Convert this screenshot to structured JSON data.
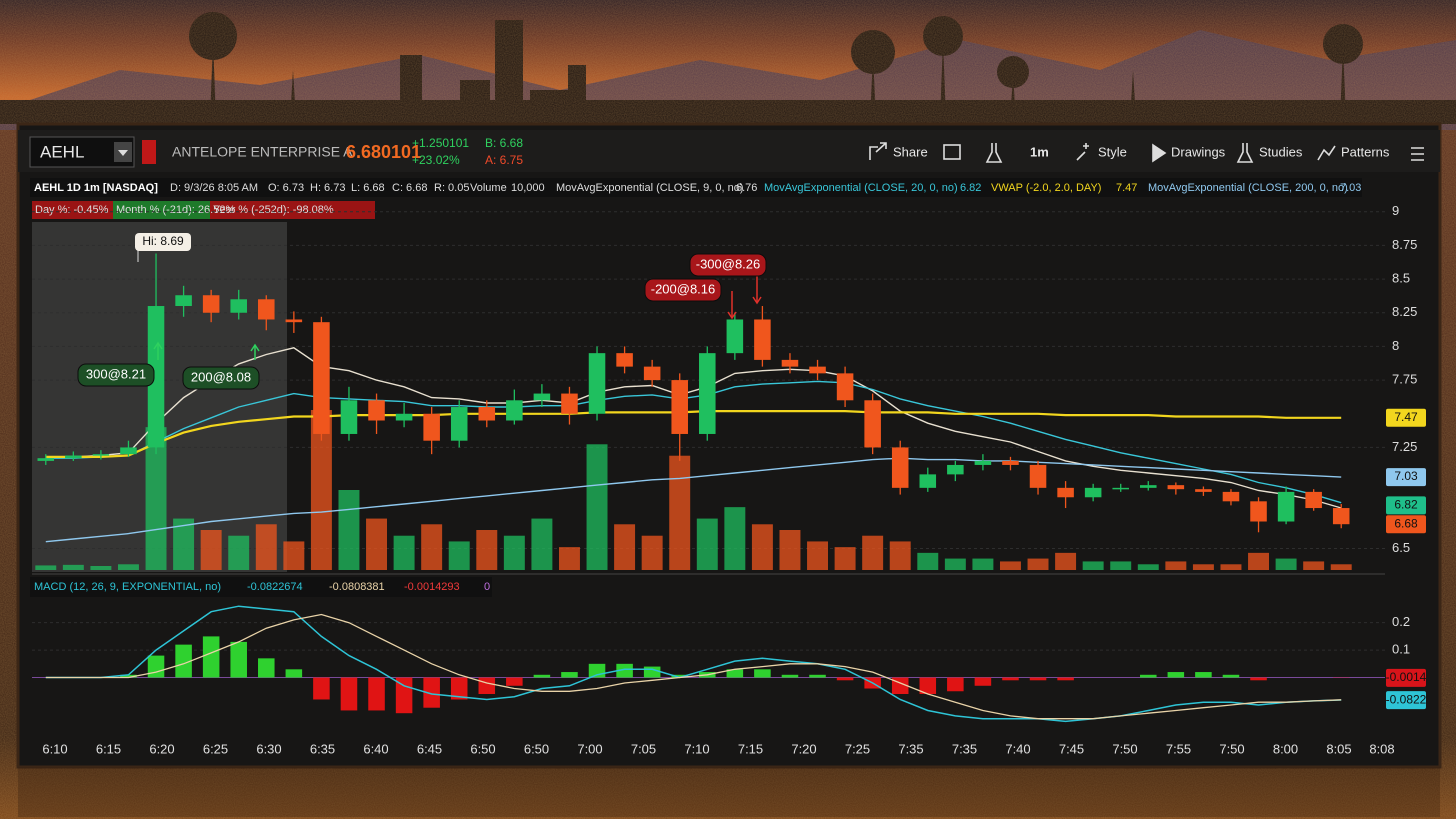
{
  "toolbar": {
    "symbol": "AEHL",
    "company": "ANTELOPE ENTERPRISE A",
    "price": "6.680101",
    "change": "+1.250101",
    "change_pct": "+23.02%",
    "bid": "B: 6.68",
    "ask": "A: 6.75",
    "buttons": [
      "Share",
      "1m",
      "Style",
      "Drawings",
      "Studies",
      "Patterns"
    ]
  },
  "info": {
    "title": "AEHL 1D 1m [NASDAQ]",
    "date": "D: 9/3/26 8:05 AM",
    "open": "O: 6.73",
    "high": "H: 6.73",
    "low": "L: 6.68",
    "close": "C: 6.68",
    "range": "R: 0.05",
    "volume_label": "Volume",
    "volume": "10,000",
    "studies": [
      {
        "name": "MovAvgExponential (CLOSE, 9, 0, no)",
        "value": "6.76"
      },
      {
        "name": "MovAvgExponential (CLOSE, 20, 0, no)",
        "value": "6.82"
      },
      {
        "name": "VWAP (-2.0, 2.0, DAY)",
        "value": "7.47"
      },
      {
        "name": "MovAvgExponential (CLOSE, 200, 0, no)",
        "value": "7.03"
      }
    ]
  },
  "stats": [
    "Day %: -0.45%",
    "Month % (-21d): 26.52%",
    "Year % (-252d): -98.08%"
  ],
  "chart_data": {
    "type": "candlestick",
    "up_color": "#1fbf5f",
    "down_color": "#f0561d",
    "candles": [
      [
        7.15,
        7.2,
        7.12,
        7.17
      ],
      [
        7.17,
        7.22,
        7.15,
        7.19
      ],
      [
        7.19,
        7.23,
        7.16,
        7.2
      ],
      [
        7.2,
        7.3,
        7.18,
        7.25
      ],
      [
        7.25,
        8.69,
        7.2,
        8.3
      ],
      [
        8.3,
        8.45,
        8.22,
        8.38
      ],
      [
        8.38,
        8.42,
        8.18,
        8.25
      ],
      [
        8.25,
        8.42,
        8.2,
        8.35
      ],
      [
        8.35,
        8.38,
        8.12,
        8.2
      ],
      [
        8.2,
        8.26,
        8.1,
        8.18
      ],
      [
        8.18,
        8.22,
        7.3,
        7.35
      ],
      [
        7.35,
        7.7,
        7.3,
        7.6
      ],
      [
        7.6,
        7.65,
        7.35,
        7.45
      ],
      [
        7.45,
        7.58,
        7.4,
        7.5
      ],
      [
        7.5,
        7.55,
        7.2,
        7.3
      ],
      [
        7.3,
        7.6,
        7.25,
        7.55
      ],
      [
        7.55,
        7.6,
        7.4,
        7.45
      ],
      [
        7.45,
        7.68,
        7.42,
        7.6
      ],
      [
        7.6,
        7.72,
        7.55,
        7.65
      ],
      [
        7.65,
        7.7,
        7.42,
        7.5
      ],
      [
        7.5,
        8.0,
        7.45,
        7.95
      ],
      [
        7.95,
        8.0,
        7.8,
        7.85
      ],
      [
        7.85,
        7.9,
        7.7,
        7.75
      ],
      [
        7.75,
        7.8,
        7.15,
        7.35
      ],
      [
        7.35,
        8.0,
        7.3,
        7.95
      ],
      [
        7.95,
        8.25,
        7.9,
        8.2
      ],
      [
        8.2,
        8.3,
        7.85,
        7.9
      ],
      [
        7.9,
        7.95,
        7.8,
        7.85
      ],
      [
        7.85,
        7.9,
        7.75,
        7.8
      ],
      [
        7.8,
        7.85,
        7.55,
        7.6
      ],
      [
        7.6,
        7.65,
        7.2,
        7.25
      ],
      [
        7.25,
        7.3,
        6.9,
        6.95
      ],
      [
        6.95,
        7.1,
        6.92,
        7.05
      ],
      [
        7.05,
        7.15,
        7.0,
        7.12
      ],
      [
        7.12,
        7.2,
        7.08,
        7.15
      ],
      [
        7.15,
        7.18,
        7.08,
        7.12
      ],
      [
        7.12,
        7.15,
        6.9,
        6.95
      ],
      [
        6.95,
        7.0,
        6.8,
        6.88
      ],
      [
        6.88,
        6.98,
        6.85,
        6.95
      ],
      [
        6.95,
        6.98,
        6.92,
        6.95
      ],
      [
        6.95,
        7.0,
        6.93,
        6.97
      ],
      [
        6.97,
        6.99,
        6.9,
        6.94
      ],
      [
        6.94,
        6.96,
        6.89,
        6.92
      ],
      [
        6.92,
        6.94,
        6.82,
        6.85
      ],
      [
        6.85,
        6.88,
        6.62,
        6.7
      ],
      [
        6.7,
        6.96,
        6.68,
        6.92
      ],
      [
        6.92,
        6.94,
        6.78,
        6.8
      ],
      [
        6.8,
        6.83,
        6.65,
        6.68
      ]
    ],
    "volume": [
      800,
      900,
      700,
      1000,
      25000,
      9000,
      7000,
      6000,
      8000,
      5000,
      28000,
      14000,
      9000,
      6000,
      8000,
      5000,
      7000,
      6000,
      9000,
      4000,
      22000,
      8000,
      6000,
      20000,
      9000,
      11000,
      8000,
      7000,
      5000,
      4000,
      6000,
      5000,
      3000,
      2000,
      2000,
      1500,
      2000,
      3000,
      1500,
      1500,
      1000,
      1500,
      1000,
      1000,
      3000,
      2000,
      1500,
      1000
    ],
    "overlays": [
      {
        "color": "#e8e0d0",
        "values": [
          7.17,
          7.18,
          7.19,
          7.21,
          7.43,
          7.62,
          7.75,
          7.87,
          7.94,
          7.99,
          7.85,
          7.82,
          7.75,
          7.7,
          7.62,
          7.61,
          7.58,
          7.58,
          7.6,
          7.58,
          7.66,
          7.7,
          7.71,
          7.64,
          7.7,
          7.8,
          7.82,
          7.83,
          7.82,
          7.78,
          7.67,
          7.52,
          7.43,
          7.37,
          7.33,
          7.29,
          7.22,
          7.15,
          7.11,
          7.08,
          7.06,
          7.04,
          7.02,
          6.99,
          6.93,
          6.9,
          6.86,
          6.8
        ]
      },
      {
        "color": "#39c6d8",
        "values": [
          7.17,
          7.17,
          7.18,
          7.19,
          7.29,
          7.39,
          7.47,
          7.55,
          7.6,
          7.65,
          7.62,
          7.61,
          7.6,
          7.59,
          7.56,
          7.56,
          7.55,
          7.55,
          7.56,
          7.56,
          7.6,
          7.63,
          7.64,
          7.61,
          7.64,
          7.7,
          7.72,
          7.73,
          7.74,
          7.73,
          7.68,
          7.61,
          7.56,
          7.52,
          7.48,
          7.43,
          7.37,
          7.31,
          7.26,
          7.21,
          7.17,
          7.13,
          7.09,
          7.05,
          6.99,
          6.95,
          6.9,
          6.84
        ]
      },
      {
        "color": "#f2d61e",
        "values": [
          7.18,
          7.18,
          7.18,
          7.19,
          7.28,
          7.36,
          7.41,
          7.44,
          7.46,
          7.48,
          7.48,
          7.49,
          7.49,
          7.49,
          7.49,
          7.5,
          7.5,
          7.5,
          7.5,
          7.5,
          7.51,
          7.51,
          7.51,
          7.51,
          7.52,
          7.52,
          7.52,
          7.52,
          7.52,
          7.52,
          7.51,
          7.51,
          7.51,
          7.5,
          7.5,
          7.5,
          7.5,
          7.49,
          7.49,
          7.49,
          7.49,
          7.48,
          7.48,
          7.48,
          7.48,
          7.47,
          7.47,
          7.47
        ]
      },
      {
        "color": "#8fc8ee",
        "values": [
          6.55,
          6.57,
          6.59,
          6.61,
          6.64,
          6.67,
          6.7,
          6.72,
          6.74,
          6.76,
          6.77,
          6.79,
          6.81,
          6.83,
          6.85,
          6.87,
          6.89,
          6.91,
          6.93,
          6.95,
          6.97,
          6.99,
          7.01,
          7.02,
          7.04,
          7.06,
          7.08,
          7.1,
          7.12,
          7.14,
          7.16,
          7.17,
          7.16,
          7.16,
          7.15,
          7.15,
          7.14,
          7.13,
          7.12,
          7.11,
          7.1,
          7.09,
          7.08,
          7.07,
          7.06,
          7.05,
          7.04,
          7.03
        ]
      }
    ],
    "ylim": [
      6.34,
      9.05
    ],
    "yticks": [
      9,
      8.75,
      8.5,
      8.25,
      8,
      7.75,
      7.25,
      6.5
    ],
    "grid": true,
    "markers": [
      {
        "value": 7.47,
        "color": "#f2d61e"
      },
      {
        "value": 7.03,
        "color": "#8fc8ee"
      },
      {
        "value": 6.82,
        "color": "#1fbf8a"
      },
      {
        "value": 6.68,
        "color": "#f0561d"
      }
    ],
    "annotations": {
      "high": "Hi: 8.69",
      "trades": [
        {
          "text": "300@8.21",
          "color": "#1d4f26"
        },
        {
          "text": "200@8.08",
          "color": "#1d4f26"
        },
        {
          "text": "-200@8.16",
          "color": "#a8161a"
        },
        {
          "text": "-300@8.26",
          "color": "#a8161a"
        }
      ]
    },
    "time_labels": [
      "6:10",
      "6:15",
      "6:20",
      "6:25",
      "6:30",
      "6:35",
      "6:40",
      "6:45",
      "6:50",
      "6:50",
      "7:00",
      "7:05",
      "7:10",
      "7:15",
      "7:20",
      "7:25",
      "7:35",
      "7:35",
      "7:40",
      "7:45",
      "7:50",
      "7:55",
      "7:50",
      "8:00",
      "8:05",
      "8:08"
    ],
    "macd": {
      "title": "MACD (12, 26, 9, EXPONENTIAL, no)",
      "macd_label": "-0.0822674",
      "signal_label": "-0.0808381",
      "hist_label": "-0.0014293",
      "extra_label": "0",
      "macd_color": "#2ec4d6",
      "signal_color": "#e9d3a8",
      "pos_color": "#2fd12f",
      "neg_color": "#e01414",
      "ylim": [
        -0.235,
        0.29
      ],
      "yticks": [
        0.2,
        0.1
      ],
      "macd": [
        0,
        0,
        0,
        0.01,
        0.1,
        0.17,
        0.24,
        0.26,
        0.25,
        0.24,
        0.15,
        0.08,
        0.03,
        -0.03,
        -0.06,
        -0.07,
        -0.08,
        -0.07,
        -0.04,
        -0.03,
        0.01,
        0.03,
        0.03,
        0.0,
        0.03,
        0.06,
        0.07,
        0.06,
        0.05,
        0.03,
        -0.02,
        -0.08,
        -0.12,
        -0.14,
        -0.15,
        -0.15,
        -0.15,
        -0.16,
        -0.15,
        -0.14,
        -0.12,
        -0.1,
        -0.09,
        -0.09,
        -0.1,
        -0.09,
        -0.085,
        -0.082
      ],
      "signal": [
        0,
        0,
        0,
        0,
        0.02,
        0.05,
        0.09,
        0.13,
        0.18,
        0.21,
        0.23,
        0.2,
        0.15,
        0.1,
        0.05,
        0.01,
        -0.02,
        -0.04,
        -0.05,
        -0.05,
        -0.04,
        -0.02,
        -0.01,
        0.0,
        0.01,
        0.03,
        0.04,
        0.05,
        0.05,
        0.04,
        0.02,
        -0.02,
        -0.06,
        -0.09,
        -0.12,
        -0.14,
        -0.15,
        -0.15,
        -0.15,
        -0.14,
        -0.13,
        -0.12,
        -0.11,
        -0.1,
        -0.09,
        -0.09,
        -0.085,
        -0.081
      ],
      "histogram": [
        0,
        0,
        0,
        0.01,
        0.08,
        0.12,
        0.15,
        0.13,
        0.07,
        0.03,
        -0.08,
        -0.12,
        -0.12,
        -0.13,
        -0.11,
        -0.08,
        -0.06,
        -0.03,
        0.01,
        0.02,
        0.05,
        0.05,
        0.04,
        0.01,
        0.02,
        0.03,
        0.03,
        0.01,
        0.01,
        -0.01,
        -0.04,
        -0.06,
        -0.06,
        -0.05,
        -0.03,
        -0.01,
        -0.01,
        -0.01,
        0.0,
        0.0,
        0.01,
        0.02,
        0.02,
        0.01,
        -0.01,
        0.0,
        0.0,
        -0.001
      ],
      "markers": [
        {
          "value": -0.0014,
          "color": "#d8141a"
        },
        {
          "value": -0.0822,
          "color": "#2ec4d6"
        }
      ]
    }
  }
}
